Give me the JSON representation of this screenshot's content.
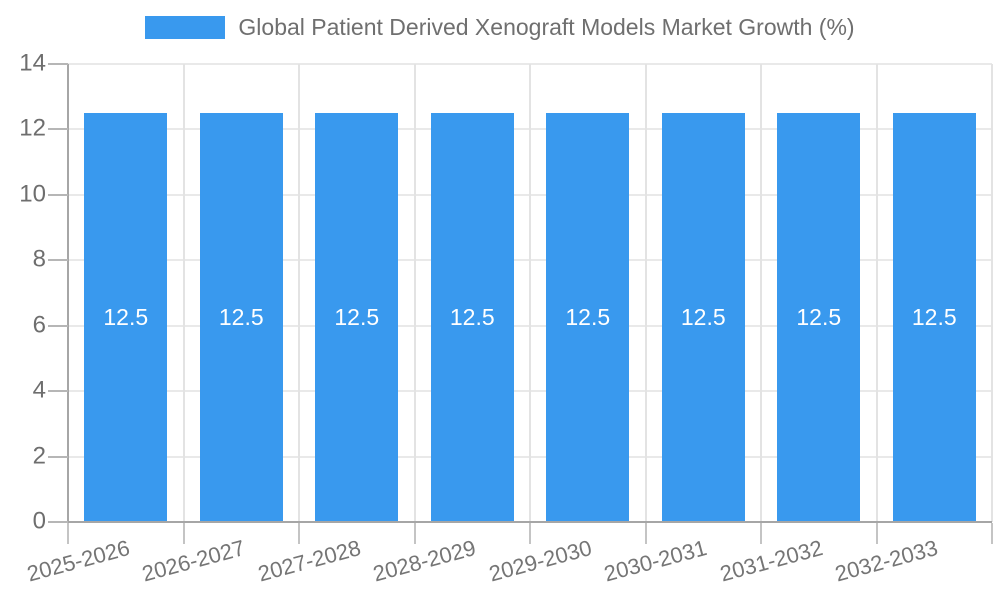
{
  "chart_data": {
    "type": "bar",
    "title": "Global Patient Derived Xenograft Models Market Growth (%)",
    "categories": [
      "2025-2026",
      "2026-2027",
      "2027-2028",
      "2028-2029",
      "2029-2030",
      "2030-2031",
      "2031-2032",
      "2032-2033"
    ],
    "series": [
      {
        "name": "Global Patient Derived Xenograft Models Market Growth (%)",
        "values": [
          12.5,
          12.5,
          12.5,
          12.5,
          12.5,
          12.5,
          12.5,
          12.5
        ]
      }
    ],
    "bar_labels": [
      "12.5",
      "12.5",
      "12.5",
      "12.5",
      "12.5",
      "12.5",
      "12.5",
      "12.5"
    ],
    "xlabel": "",
    "ylabel": "",
    "ylim": [
      0,
      14
    ],
    "yticks": [
      0,
      2,
      4,
      6,
      8,
      10,
      12,
      14
    ],
    "ytick_labels": [
      "0",
      "2",
      "4",
      "6",
      "8",
      "10",
      "12",
      "14"
    ],
    "grid": "horizontal and vertical gridlines on",
    "legend_position": "top-center",
    "x_label_rotation_deg": -15,
    "colors": {
      "bar": "#3999ee",
      "bar_value_label": "#ffffff",
      "title_text": "#6f6f6f",
      "axis_label_text": "#6e6e6e",
      "axis_line": "#a6a6a6",
      "gridline": "#e8e8e8",
      "background": "#ffffff"
    }
  }
}
